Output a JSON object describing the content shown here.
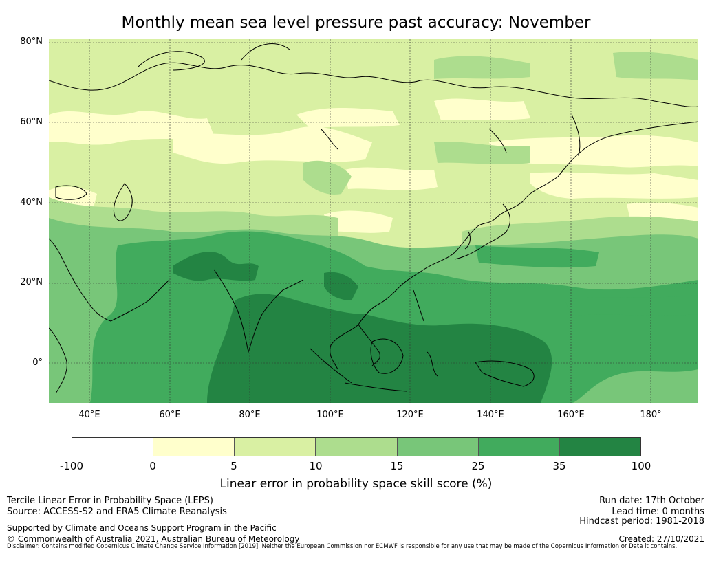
{
  "title": "Monthly mean sea level pressure past accuracy: November",
  "map": {
    "lat_labels": [
      "80°N",
      "60°N",
      "40°N",
      "20°N",
      "0°"
    ],
    "lon_labels": [
      "40°E",
      "60°E",
      "80°E",
      "100°E",
      "120°E",
      "140°E",
      "160°E",
      "180°"
    ],
    "region_note": "Asia-Pacific, approx. 30°E–193°E, 10°S–80°N"
  },
  "colorbar": {
    "ticks": [
      "-100",
      "0",
      "5",
      "10",
      "15",
      "25",
      "35",
      "100"
    ],
    "colors": [
      "#ffffff",
      "#ffffcc",
      "#d9f0a3",
      "#addd8e",
      "#78c679",
      "#41ab5d",
      "#238443"
    ],
    "label": "Linear error in probability space skill score (%)"
  },
  "footer": {
    "method": "Tercile Linear Error in Probability Space (LEPS)",
    "source": "Source: ACCESS-S2 and ERA5 Climate Reanalysis",
    "support": "Supported by Climate and Oceans Support Program in the Pacific",
    "copyright": "© Commonwealth of Australia 2021, Australian Bureau of Meteorology",
    "run_date": "Run date: 17th October",
    "lead_time": "Lead time: 0 months",
    "hindcast": "Hindcast period: 1981-2018",
    "created": "Created: 27/10/2021",
    "disclaimer": "Disclaimer: Contains modified Copernicus Climate Change Service Information [2019]. Neither the European Commission nor ECMWF is responsible for any use that may be made of the Copernicus Information or Data it contains."
  }
}
